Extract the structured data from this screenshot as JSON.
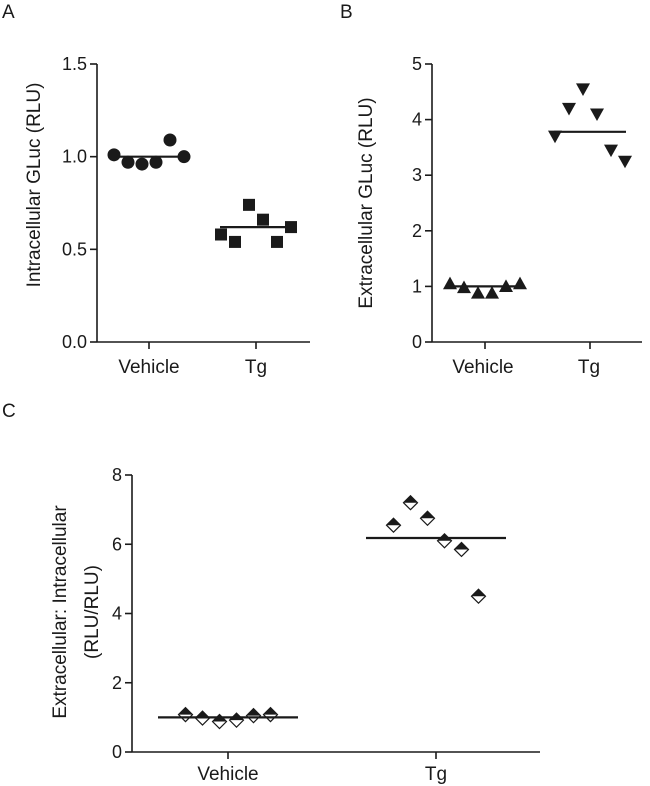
{
  "chart_data": [
    {
      "panel": "A",
      "type": "scatter",
      "categories": [
        "Vehicle",
        "Tg"
      ],
      "ylabel": "Intracellular GLuc (RLU)",
      "ylim": [
        0,
        1.5
      ],
      "yticks": [
        "0.0",
        "0.5",
        "1.0",
        "1.5"
      ],
      "marker": "circle",
      "series": [
        {
          "name": "Vehicle",
          "values": [
            1.01,
            0.97,
            0.96,
            0.97,
            1.09,
            1.0
          ],
          "mean": 1.0
        },
        {
          "name": "Tg",
          "values": [
            0.58,
            0.54,
            0.74,
            0.66,
            0.54,
            0.62
          ],
          "mean": 0.62
        }
      ]
    },
    {
      "panel": "B",
      "type": "scatter",
      "categories": [
        "Vehicle",
        "Tg"
      ],
      "ylabel": "Extracellular GLuc (RLU)",
      "ylim": [
        0,
        5
      ],
      "yticks": [
        "0",
        "1",
        "2",
        "3",
        "4",
        "5"
      ],
      "marker": "triangle-down",
      "series": [
        {
          "name": "Vehicle",
          "values": [
            1.05,
            0.98,
            0.88,
            0.88,
            1.0,
            1.05
          ],
          "mean": 1.0
        },
        {
          "name": "Tg",
          "values": [
            3.7,
            4.2,
            4.55,
            4.1,
            3.45,
            3.25
          ],
          "mean": 3.78
        }
      ]
    },
    {
      "panel": "C",
      "type": "scatter",
      "categories": [
        "Vehicle",
        "Tg"
      ],
      "ylabel_line1": "Extracellular: Intracellular",
      "ylabel_line2": "(RLU/RLU)",
      "ylim": [
        0,
        8
      ],
      "yticks": [
        "0",
        "2",
        "4",
        "6",
        "8"
      ],
      "marker": "half-diamond",
      "series": [
        {
          "name": "Vehicle",
          "values": [
            1.08,
            0.98,
            0.88,
            0.92,
            1.05,
            1.08
          ],
          "mean": 1.0
        },
        {
          "name": "Tg",
          "values": [
            6.55,
            7.2,
            6.75,
            6.1,
            5.85,
            4.5
          ],
          "mean": 6.18
        }
      ]
    }
  ]
}
